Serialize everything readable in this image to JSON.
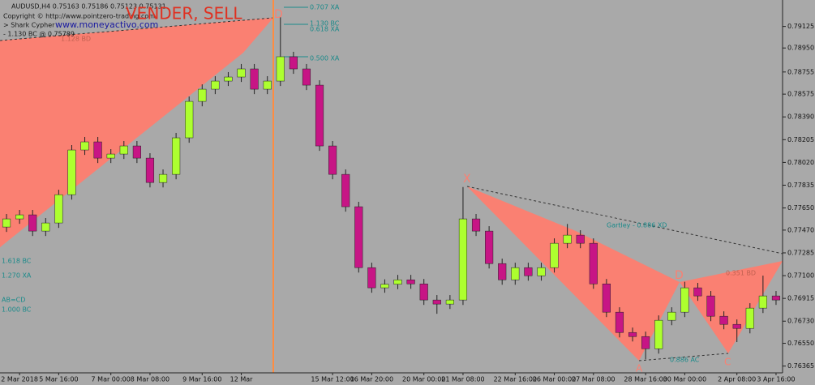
{
  "chart_data": {
    "type": "candlestick",
    "title": "AUDUSD,H4  0.75163 0.75186 0.75123 0.75131",
    "subtitle": "Copyright © http://www.pointzero-trading.com",
    "indicator": "> Shark Cypher",
    "website": "www.moneyactivo.com",
    "indicator_note": "- 1.130 BC @ 0.75789",
    "signal": "VENDER, SELL",
    "annotations": [
      "D",
      "0.707 XA",
      "1.130 BC",
      "0.618 XA",
      "0.500 XA",
      "1.128 BD",
      "1.618 BC",
      "1.270 XA",
      "AB=CD",
      "1.000 BC",
      "X",
      "Gartley - 0.886 XD",
      "0.351 BD",
      "D",
      "0.886 AC",
      "A",
      "C"
    ],
    "categories": [
      null,
      "2 Mar 2018",
      null,
      null,
      "5 Mar 16:00",
      null,
      null,
      null,
      "7 Mar 00:00",
      null,
      null,
      "8 Mar 08:00",
      null,
      null,
      null,
      "9 Mar 16:00",
      null,
      null,
      "12 Mar",
      null,
      null,
      null,
      null,
      null,
      null,
      "15 Mar 12:00",
      null,
      null,
      "16 Mar 20:00",
      null,
      null,
      null,
      "20 Mar 00:00",
      null,
      null,
      "21 Mar 08:00",
      null,
      null,
      null,
      "22 Mar 16:00",
      null,
      null,
      "26 Mar 00:00",
      null,
      null,
      "27 Mar 08:00",
      null,
      null,
      null,
      "28 Mar 16:00",
      null,
      null,
      "30 Mar 00:00",
      null,
      null,
      null,
      "2 Apr 08:00",
      null,
      null,
      "3 Apr 16:00"
    ],
    "open": [
      0.77495,
      0.77561,
      0.77594,
      0.77462,
      0.77528,
      0.77758,
      0.78121,
      0.78187,
      0.78055,
      0.78088,
      0.78154,
      0.78055,
      0.77857,
      0.77923,
      0.7822,
      0.78516,
      0.78615,
      0.78681,
      0.78714,
      0.7878,
      0.78615,
      0.78681,
      0.78879,
      0.7878,
      0.78648,
      0.78154,
      0.77923,
      0.7766,
      0.77165,
      0.77001,
      0.7703,
      0.77066,
      0.77033,
      0.76902,
      0.76869,
      0.76902,
      0.77561,
      0.77462,
      0.77198,
      0.77066,
      0.77165,
      0.77099,
      0.77165,
      0.77363,
      0.77429,
      0.77363,
      0.77033,
      0.76803,
      0.76638,
      0.76605,
      0.76506,
      0.76737,
      0.76803,
      0.77001,
      0.76935,
      0.7677,
      0.76704,
      0.76671,
      0.76836,
      0.76935
    ],
    "high": [
      0.77601,
      0.77634,
      0.77634,
      0.77568,
      0.77798,
      0.78161,
      0.78227,
      0.78227,
      0.78128,
      0.78194,
      0.78194,
      0.78095,
      0.77963,
      0.7826,
      0.78556,
      0.78655,
      0.78721,
      0.78754,
      0.7882,
      0.7882,
      0.78721,
      0.792,
      0.78919,
      0.7882,
      0.78688,
      0.78194,
      0.77963,
      0.777,
      0.77205,
      0.7707,
      0.77106,
      0.77106,
      0.77073,
      0.76942,
      0.76942,
      0.7782,
      0.77601,
      0.77502,
      0.77238,
      0.77205,
      0.77205,
      0.77205,
      0.77403,
      0.7752,
      0.77469,
      0.77403,
      0.77073,
      0.76843,
      0.76678,
      0.76645,
      0.76777,
      0.76843,
      0.7705,
      0.77041,
      0.76975,
      0.7681,
      0.76744,
      0.76876,
      0.771,
      0.76975
    ],
    "low": [
      0.77455,
      0.77521,
      0.77422,
      0.77422,
      0.77488,
      0.77718,
      0.78081,
      0.78015,
      0.78015,
      0.78048,
      0.78015,
      0.77817,
      0.77817,
      0.77883,
      0.7818,
      0.78476,
      0.78575,
      0.78641,
      0.78674,
      0.78575,
      0.78575,
      0.78641,
      0.7874,
      0.78608,
      0.78114,
      0.77883,
      0.7762,
      0.77125,
      0.76961,
      0.76961,
      0.7699,
      0.76993,
      0.76862,
      0.7679,
      0.76829,
      0.76862,
      0.77422,
      0.77158,
      0.77026,
      0.77026,
      0.77059,
      0.77059,
      0.77125,
      0.77323,
      0.77323,
      0.76993,
      0.76763,
      0.76598,
      0.76565,
      0.7642,
      0.76466,
      0.76697,
      0.76763,
      0.76895,
      0.7673,
      0.76664,
      0.7656,
      0.76631,
      0.76796,
      0.76862
    ],
    "close": [
      0.77561,
      0.77594,
      0.77462,
      0.77528,
      0.77758,
      0.78121,
      0.78187,
      0.78055,
      0.78088,
      0.78154,
      0.78055,
      0.77857,
      0.77923,
      0.7822,
      0.78516,
      0.78615,
      0.78681,
      0.78714,
      0.7878,
      0.78615,
      0.78681,
      0.78879,
      0.7878,
      0.78648,
      0.78154,
      0.77923,
      0.7766,
      0.77165,
      0.77001,
      0.7703,
      0.77066,
      0.77033,
      0.76902,
      0.76869,
      0.76902,
      0.77561,
      0.77462,
      0.77198,
      0.77066,
      0.77165,
      0.77099,
      0.77165,
      0.77363,
      0.77429,
      0.77363,
      0.77033,
      0.76803,
      0.76638,
      0.76605,
      0.76506,
      0.76737,
      0.76803,
      0.77001,
      0.76935,
      0.7677,
      0.76704,
      0.76671,
      0.76836,
      0.76935,
      0.76902
    ],
    "up_color": "#adff2f",
    "down_color": "#c71585",
    "ylim": [
      0.7631,
      0.7934
    ],
    "yticks": [
      {
        "value": 0.79125,
        "label": "0.79125"
      },
      {
        "value": 0.7895,
        "label": "0.78950"
      },
      {
        "value": 0.78755,
        "label": "0.78755"
      },
      {
        "value": 0.78575,
        "label": "0.78575"
      },
      {
        "value": 0.7839,
        "label": "0.78390"
      },
      {
        "value": 0.78205,
        "label": "0.78205"
      },
      {
        "value": 0.7802,
        "label": "0.78020"
      },
      {
        "value": 0.77835,
        "label": "0.77835"
      },
      {
        "value": 0.7765,
        "label": "0.77650"
      },
      {
        "value": 0.7747,
        "label": "0.77470"
      },
      {
        "value": 0.77285,
        "label": "0.77285"
      },
      {
        "value": 0.771,
        "label": "0.77100"
      },
      {
        "value": 0.76915,
        "label": "0.76915"
      },
      {
        "value": 0.7673,
        "label": "0.76730"
      },
      {
        "value": 0.7655,
        "label": "0.76550"
      },
      {
        "value": 0.76365,
        "label": "0.76365"
      }
    ]
  }
}
